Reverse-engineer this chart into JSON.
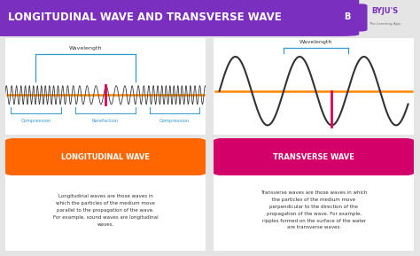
{
  "title": "LONGITUDINAL WAVE AND TRANSVERSE WAVE",
  "title_bg": "#7b2fbe",
  "title_color": "#ffffff",
  "main_bg": "#e5e5e5",
  "panel_bg": "#ffffff",
  "left_label": "LONGITUDINAL WAVE",
  "left_label_color": "#ff6600",
  "right_label": "TRANSVERSE WAVE",
  "right_label_color": "#d4006a",
  "left_text": "Longitudinal waves are those waves in\nwhich the particles of the medium move\nparallel to the propagation of the wave.\nFor example, sound waves are longitudinal\nwaves.",
  "right_text": "Transverse waves are those waves in which\nthe particles of the medium move\nperpendicular to the direction of the\npropagation of the wave. For example,\nripples formed on the surface of the water\nare transverse waves.",
  "wave_color": "#333333",
  "axis_color": "#ff8800",
  "highlight_color": "#e0005a",
  "bracket_color": "#3399cc",
  "compression_color": "#3399cc",
  "wavelength_label": "Wavelength",
  "compression_label1": "Compression",
  "rarefaction_label": "Rarefaction",
  "compression_label2": "Compression",
  "byju_bg": "#f0f0f0",
  "title_curve_bg": "#7b2fbe"
}
